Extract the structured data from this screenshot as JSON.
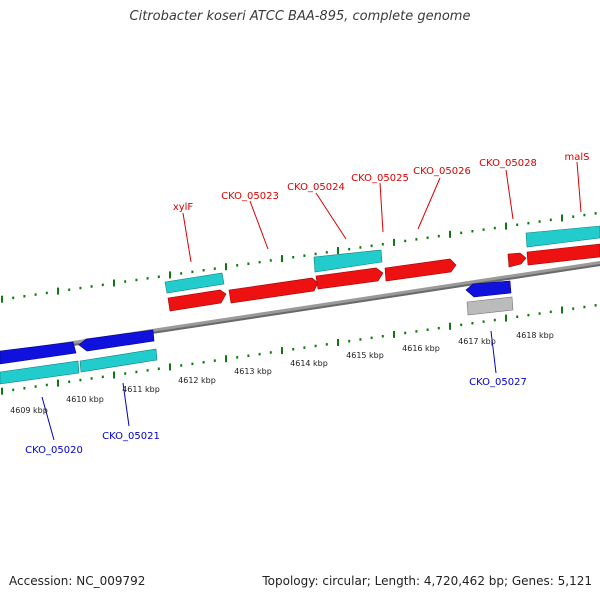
{
  "title": "Citrobacter koseri ATCC BAA-895, complete genome",
  "footer": {
    "accession": "Accession: NC_009792",
    "summary": "Topology: circular; Length: 4,720,462 bp; Genes: 5,121"
  },
  "colors": {
    "forward_gene": "#ee1111",
    "forward_label": "#dd0000",
    "forward_cds": "#22cccc",
    "reverse_gene": "#1111dd",
    "reverse_label": "#0000cc",
    "reverse_cds": "#22cccc",
    "pseudo": "#bbbbbb",
    "backbone": "#888888",
    "tick": "#117711"
  },
  "position_labels": [
    "4609 kbp",
    "4610 kbp",
    "4611 kbp",
    "4612 kbp",
    "4613 kbp",
    "4614 kbp",
    "4615 kbp",
    "4616 kbp",
    "4617 kbp",
    "4618 kbp"
  ],
  "forward_labels": [
    "xylF",
    "CKO_05023",
    "CKO_05024",
    "CKO_05025",
    "CKO_05026",
    "CKO_05028",
    "malS"
  ],
  "reverse_labels": [
    "CKO_05020",
    "CKO_05021",
    "CKO_05027"
  ]
}
